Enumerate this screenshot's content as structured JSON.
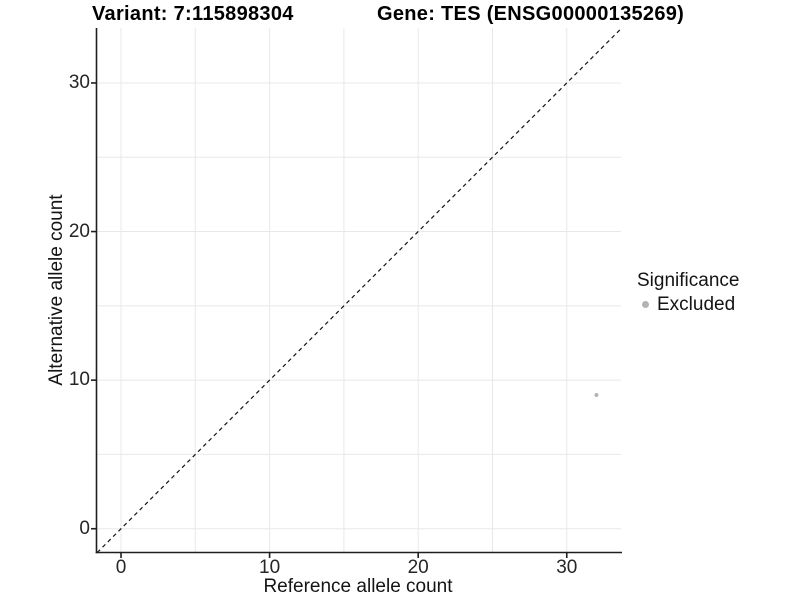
{
  "chart_data": {
    "type": "scatter",
    "titles": {
      "left": "Variant: 7:115898304",
      "right": "Gene: TES (ENSG00000135269)"
    },
    "xlabel": "Reference allele count",
    "ylabel": "Alternative allele count",
    "xlim": [
      -1.65,
      33.65
    ],
    "ylim": [
      -1.6,
      33.7
    ],
    "x_major_ticks": [
      0,
      10,
      20,
      30
    ],
    "y_major_ticks": [
      0,
      10,
      20,
      30
    ],
    "grid": true,
    "gridline_step": 5,
    "gridline_range": [
      0,
      30
    ],
    "reference_line": {
      "type": "identity y=x",
      "style": "dashed",
      "color": "#141414"
    },
    "legend": {
      "title": "Significance",
      "position": "right",
      "items": [
        {
          "label": "Excluded",
          "color": "#b3b3b3"
        }
      ]
    },
    "series": [
      {
        "name": "Excluded",
        "color": "#b3b3b3",
        "points": [
          {
            "x": 32,
            "y": 9
          }
        ]
      }
    ],
    "colors": {
      "grid": "#e8e8e8",
      "axis": "#1f1f1f",
      "point": "#b3b3b3"
    }
  }
}
